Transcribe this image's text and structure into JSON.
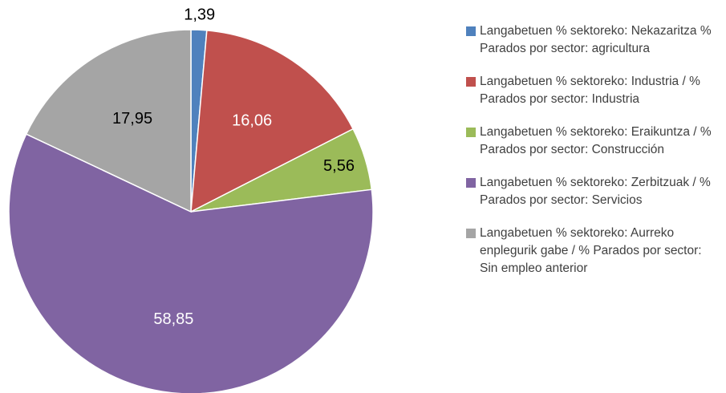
{
  "chart_data": {
    "type": "pie",
    "categories": [
      "Langabetuen % sektoreko: Nekazaritza % Parados por sector: agricultura",
      "Langabetuen % sektoreko: Industria / % Parados por sector: Industria",
      "Langabetuen % sektoreko: Eraikuntza / % Parados por sector: Construcción",
      "Langabetuen % sektoreko: Zerbitzuak / % Parados por sector: Servicios",
      "Langabetuen % sektoreko: Aurreko enplegurik gabe / % Parados por sector: Sin empleo anterior"
    ],
    "values": [
      1.39,
      16.06,
      5.56,
      58.85,
      17.95
    ],
    "value_labels": [
      "1,39",
      "16,06",
      "5,56",
      "58,85",
      "17,95"
    ],
    "colors": [
      "#4f81bd",
      "#c0504d",
      "#9bbb59",
      "#8064a2",
      "#a5a5a5"
    ],
    "legend": "right"
  }
}
